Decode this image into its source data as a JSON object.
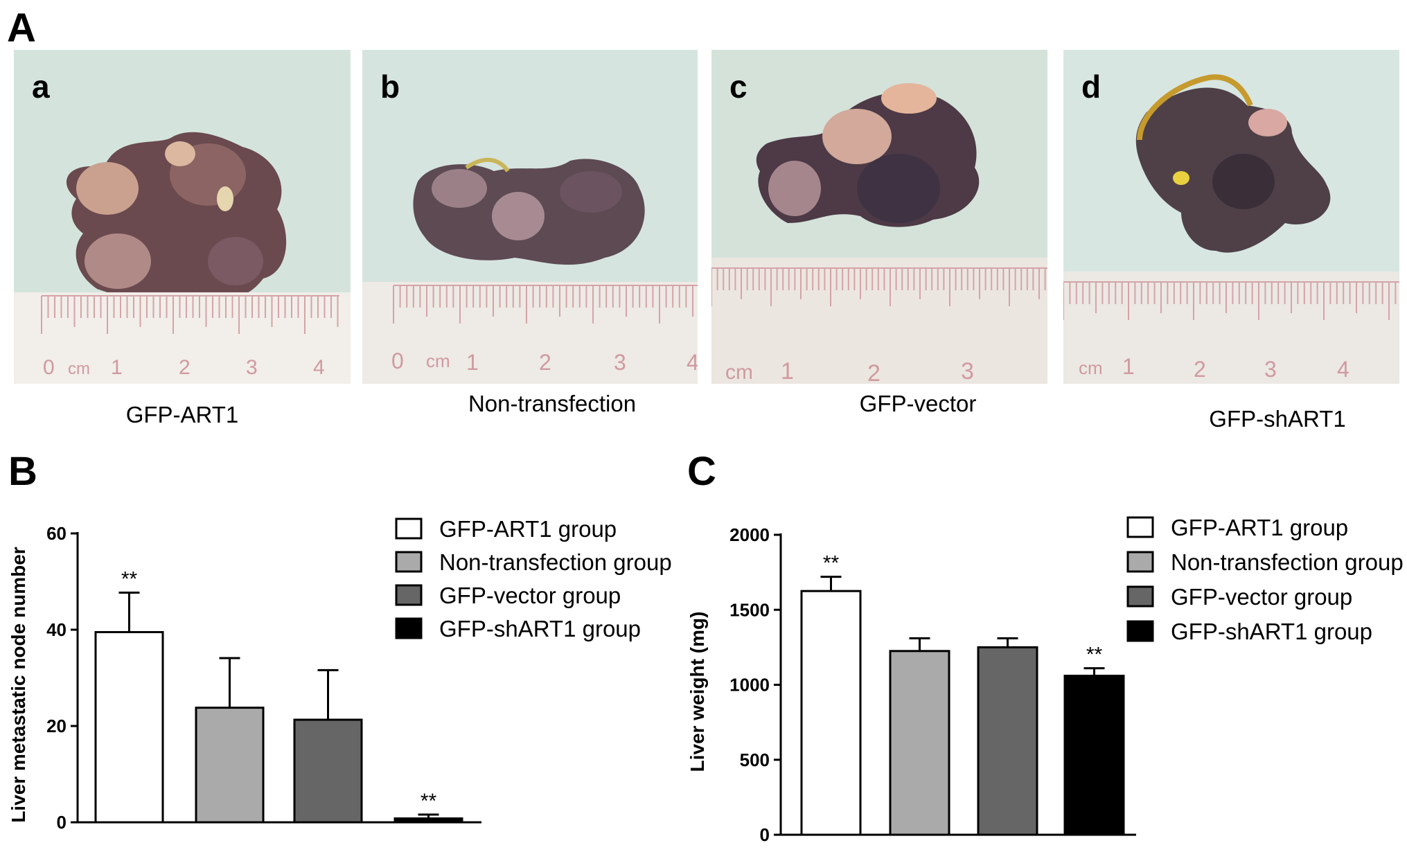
{
  "panel_labels": {
    "a": "A",
    "b": "B",
    "c": "C"
  },
  "photos": [
    {
      "letter": "a",
      "caption": "GFP-ART1",
      "ruler": [
        "0",
        "cm",
        "1",
        "2",
        "3",
        "4"
      ]
    },
    {
      "letter": "b",
      "caption": "Non-transfection",
      "ruler": [
        "0",
        "cm",
        "1",
        "2",
        "3",
        "4"
      ]
    },
    {
      "letter": "c",
      "caption": "GFP-vector",
      "ruler": [
        "cm",
        "1",
        "2",
        "3"
      ]
    },
    {
      "letter": "d",
      "caption": "GFP-shART1",
      "ruler": [
        "cm",
        "1",
        "2",
        "3",
        "4"
      ]
    }
  ],
  "chart_data": [
    {
      "type": "bar",
      "panel": "B",
      "categories": [
        "GFP-ART1 group",
        "Non-transfection group",
        "GFP-vector group",
        "GFP-shART1 group"
      ],
      "values": [
        39.5,
        23.8,
        21.3,
        0.8
      ],
      "errors": [
        8.2,
        10.3,
        10.3,
        0.8
      ],
      "significance": [
        "**",
        "",
        "",
        "**"
      ],
      "colors": [
        "#ffffff",
        "#aaaaaa",
        "#666666",
        "#000000"
      ],
      "ylabel": "Liver metastatic node number",
      "ylim": [
        0,
        60
      ],
      "yticks": [
        "0",
        "20",
        "40",
        "60"
      ],
      "legend": [
        "GFP-ART1 group",
        "Non-transfection group",
        "GFP-vector group",
        "GFP-shART1 group"
      ],
      "legend_position": "top-right",
      "grid": false
    },
    {
      "type": "bar",
      "panel": "C",
      "categories": [
        "GFP-ART1 group",
        "Non-transfection group",
        "GFP-vector group",
        "GFP-shART1 group"
      ],
      "values": [
        1625,
        1225,
        1250,
        1060
      ],
      "errors": [
        95,
        85,
        60,
        50
      ],
      "significance": [
        "**",
        "",
        "",
        "**"
      ],
      "colors": [
        "#ffffff",
        "#aaaaaa",
        "#666666",
        "#000000"
      ],
      "ylabel": "Liver weight (mg)",
      "ylim": [
        0,
        2000
      ],
      "yticks": [
        "0",
        "500",
        "1000",
        "1500",
        "2000"
      ],
      "legend": [
        "GFP-ART1 group",
        "Non-transfection group",
        "GFP-vector group",
        "GFP-shART1 group"
      ],
      "legend_position": "top-right",
      "grid": false
    }
  ]
}
